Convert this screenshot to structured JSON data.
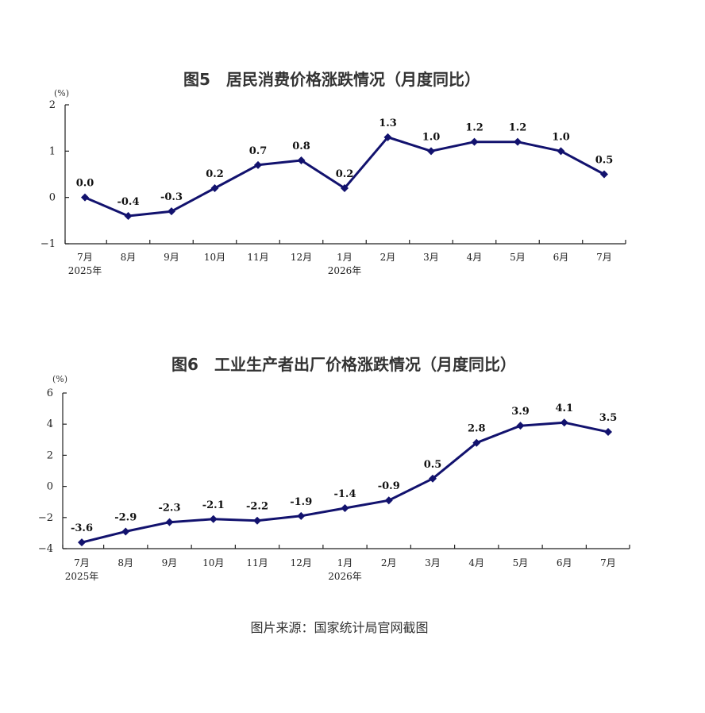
{
  "chart_data": [
    {
      "type": "line",
      "title": "图5　居民消费价格涨跌情况（月度同比）",
      "unit": "(%)",
      "categories": [
        "7月",
        "8月",
        "9月",
        "10月",
        "11月",
        "12月",
        "1月",
        "2月",
        "3月",
        "4月",
        "5月",
        "6月",
        "7月"
      ],
      "year_labels": [
        "2025年",
        "",
        "",
        "",
        "",
        "",
        "2026年",
        "",
        "",
        "",
        "",
        "",
        ""
      ],
      "values": [
        0.0,
        -0.4,
        -0.3,
        0.2,
        0.7,
        0.8,
        0.2,
        1.3,
        1.0,
        1.2,
        1.2,
        1.0,
        0.5
      ],
      "value_labels": [
        "0.0",
        "-0.4",
        "-0.3",
        "0.2",
        "0.7",
        "0.8",
        "0.2",
        "1.3",
        "1.0",
        "1.2",
        "1.2",
        "1.0",
        "0.5"
      ],
      "ylim": [
        -1,
        2
      ],
      "yticks": [
        -1,
        0,
        1,
        2
      ],
      "ytick_labels": [
        "−1",
        "0",
        "1",
        "2"
      ],
      "color": "#12126e"
    },
    {
      "type": "line",
      "title": "图6　工业生产者出厂价格涨跌情况（月度同比）",
      "unit": "(%)",
      "categories": [
        "7月",
        "8月",
        "9月",
        "10月",
        "11月",
        "12月",
        "1月",
        "2月",
        "3月",
        "4月",
        "5月",
        "6月",
        "7月"
      ],
      "year_labels": [
        "2025年",
        "",
        "",
        "",
        "",
        "",
        "2026年",
        "",
        "",
        "",
        "",
        "",
        ""
      ],
      "values": [
        -3.6,
        -2.9,
        -2.3,
        -2.1,
        -2.2,
        -1.9,
        -1.4,
        -0.9,
        0.5,
        2.8,
        3.9,
        4.1,
        3.5
      ],
      "value_labels": [
        "-3.6",
        "-2.9",
        "-2.3",
        "-2.1",
        "-2.2",
        "-1.9",
        "-1.4",
        "-0.9",
        "0.5",
        "2.8",
        "3.9",
        "4.1",
        "3.5"
      ],
      "ylim": [
        -4,
        6
      ],
      "yticks": [
        -4,
        -2,
        0,
        2,
        4,
        6
      ],
      "ytick_labels": [
        "−4",
        "−2",
        "0",
        "2",
        "4",
        "6"
      ],
      "color": "#12126e"
    }
  ],
  "source": "图片来源：国家统计局官网截图"
}
